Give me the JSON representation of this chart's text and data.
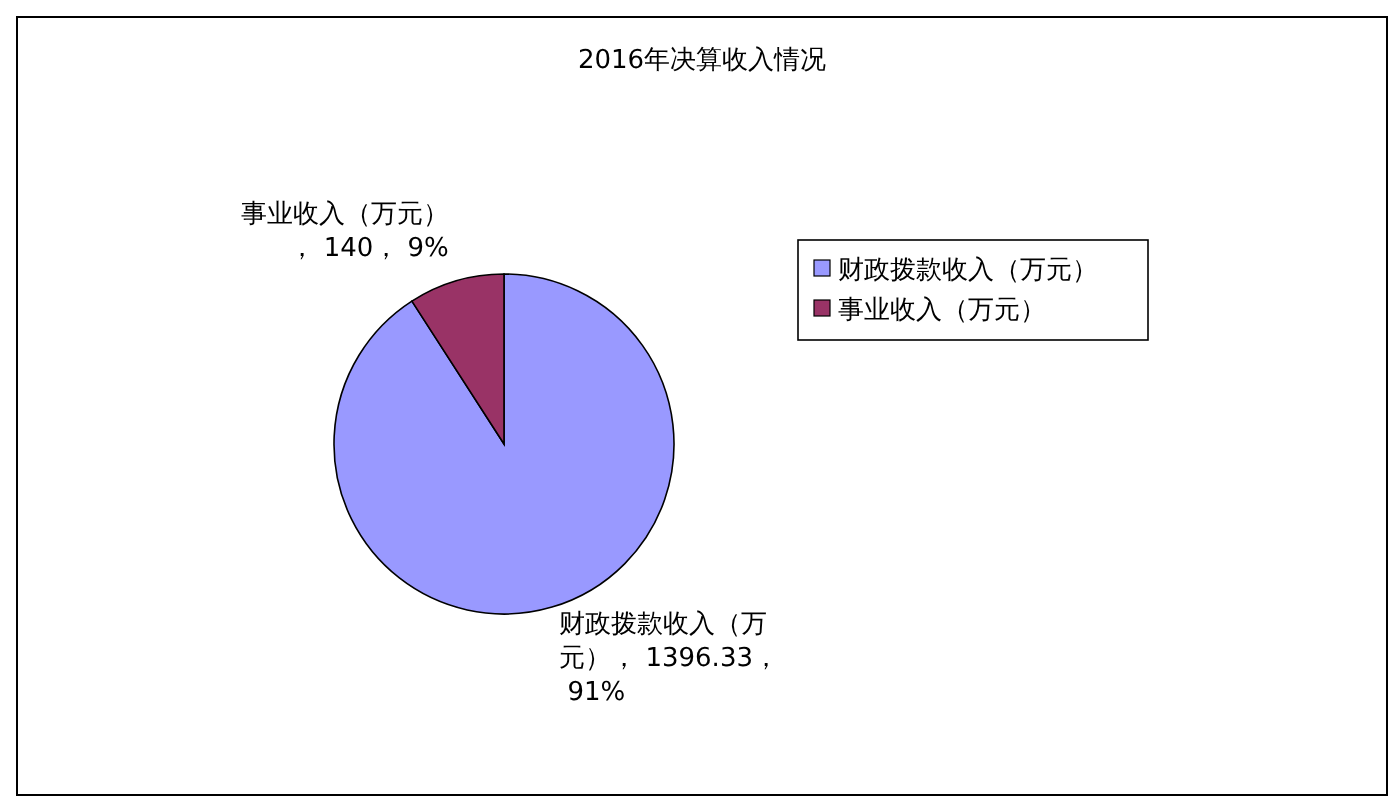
{
  "chart_data": {
    "type": "pie",
    "title": "2016年决算收入情况",
    "categories": [
      "财政拨款收入（万元）",
      "事业收入（万元）"
    ],
    "values": [
      1396.33,
      140
    ],
    "colors": [
      "#9999ff",
      "#993366"
    ],
    "value_labels": [
      "财政拨款收入（万元）， 1396.33， 91%",
      "事业收入（万元）， 140， 9%"
    ],
    "legend": "right"
  }
}
